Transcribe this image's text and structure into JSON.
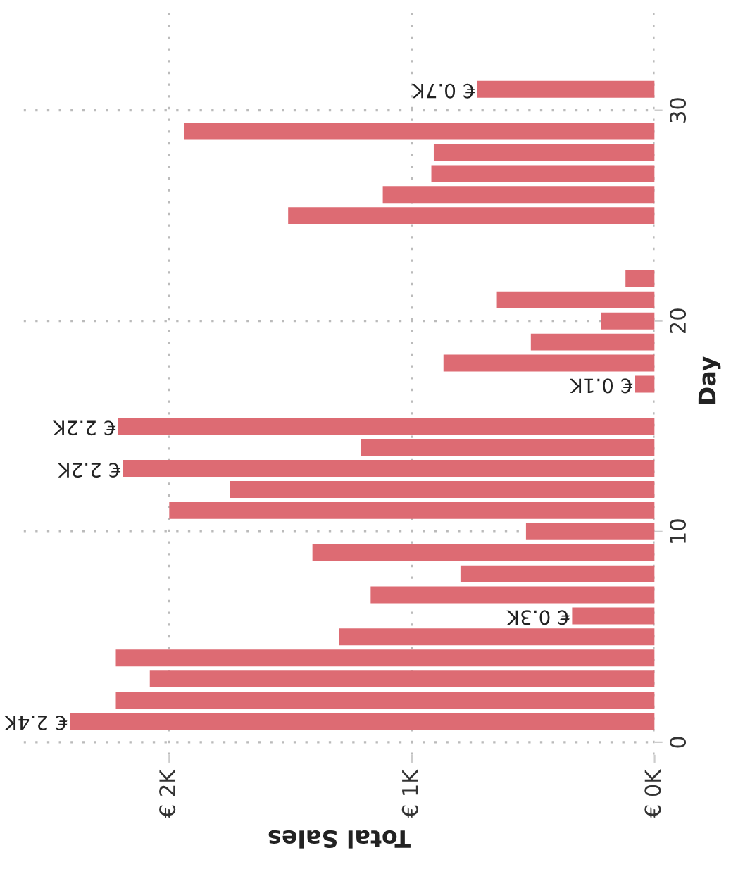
{
  "chart_data": {
    "type": "bar",
    "orientation": "horizontal",
    "xlabel": "Total Sales",
    "ylabel": "Day",
    "x": [
      1,
      2,
      3,
      4,
      5,
      6,
      7,
      8,
      9,
      10,
      11,
      12,
      13,
      14,
      15,
      17,
      18,
      19,
      20,
      21,
      22,
      25,
      26,
      27,
      28,
      29,
      31
    ],
    "values": [
      2410,
      2220,
      2080,
      2220,
      1300,
      340,
      1170,
      800,
      1410,
      530,
      2000,
      1750,
      2190,
      1210,
      2210,
      80,
      870,
      510,
      220,
      650,
      120,
      1510,
      1120,
      920,
      910,
      1940,
      730
    ],
    "value_labels": [
      "€ 2.4K",
      null,
      null,
      null,
      null,
      "€ 0.3K",
      null,
      null,
      null,
      null,
      null,
      null,
      "€ 2.2K",
      null,
      "€ 2.2K",
      "€ 0.1K",
      null,
      null,
      null,
      null,
      null,
      null,
      null,
      null,
      null,
      null,
      "€ 0.7K"
    ],
    "color": "#dd6b73",
    "xlim": [
      2600,
      0
    ],
    "xticks": [
      {
        "value": 2000,
        "label": "€ 2K"
      },
      {
        "value": 1000,
        "label": "€ 1K"
      },
      {
        "value": 0,
        "label": "€ 0K"
      }
    ],
    "ylim": [
      -0.6,
      34.9
    ],
    "yticks": [
      0,
      10,
      20,
      30
    ],
    "grid": true
  }
}
